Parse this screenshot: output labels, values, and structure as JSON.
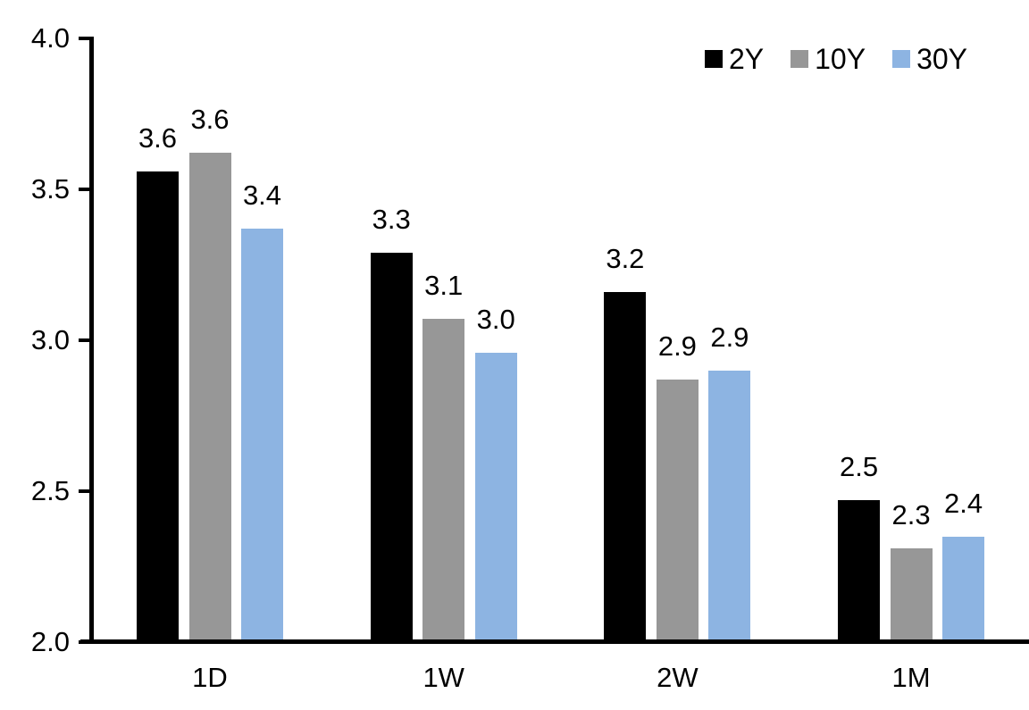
{
  "chart_data": {
    "type": "bar",
    "title": "",
    "categories": [
      "1D",
      "1W",
      "2W",
      "1M"
    ],
    "series": [
      {
        "name": "2Y",
        "color": "#000000",
        "values": [
          3.6,
          3.3,
          3.2,
          2.5
        ],
        "labels": [
          "3.6",
          "3.3",
          "3.2",
          "2.5"
        ],
        "plot_values": [
          3.56,
          3.29,
          3.16,
          2.47
        ]
      },
      {
        "name": "10Y",
        "color": "#979797",
        "values": [
          3.6,
          3.1,
          2.9,
          2.3
        ],
        "labels": [
          "3.6",
          "3.1",
          "2.9",
          "2.3"
        ],
        "plot_values": [
          3.62,
          3.07,
          2.87,
          2.31
        ]
      },
      {
        "name": "30Y",
        "color": "#8DB4E2",
        "values": [
          3.4,
          3.0,
          2.9,
          2.4
        ],
        "labels": [
          "3.4",
          "3.0",
          "2.9",
          "2.4"
        ],
        "plot_values": [
          3.37,
          2.96,
          2.9,
          2.35
        ]
      }
    ],
    "y_axis": {
      "min": 2.0,
      "max": 4.0,
      "tick_step": 0.5,
      "tick_labels": [
        "2.0",
        "2.5",
        "3.0",
        "3.5",
        "4.0"
      ]
    },
    "x_axis": {
      "tick_labels": [
        "1D",
        "1W",
        "2W",
        "1M"
      ]
    },
    "legend": {
      "position": "top-right",
      "entries": [
        {
          "label": "2Y",
          "color": "#000000"
        },
        {
          "label": "10Y",
          "color": "#979797"
        },
        {
          "label": "30Y",
          "color": "#8DB4E2"
        }
      ]
    },
    "grid": false,
    "axis_color": "#000000",
    "text_color": "#000000",
    "background": "#FFFFFF"
  }
}
